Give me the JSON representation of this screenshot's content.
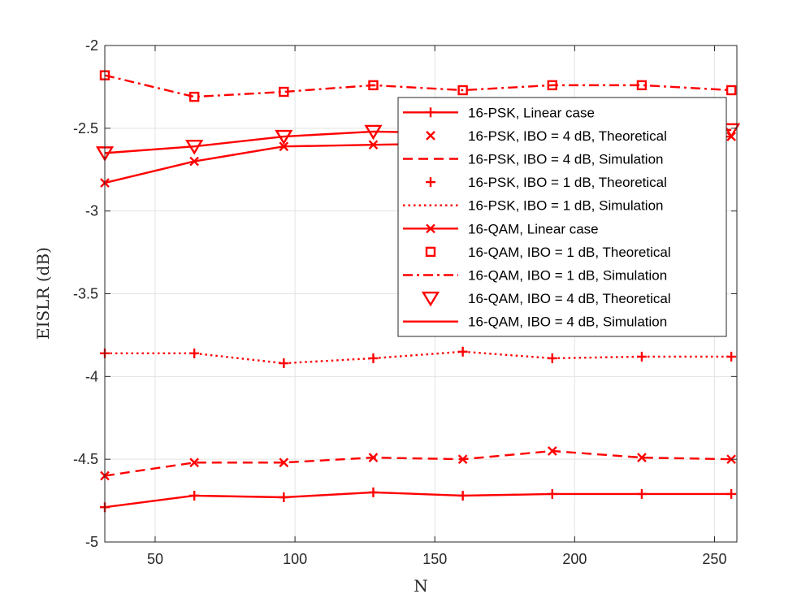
{
  "chart_data": {
    "type": "line",
    "title": "",
    "xlabel": "N",
    "ylabel": "EISLR (dB)",
    "xlim": [
      32,
      258
    ],
    "ylim": [
      -5,
      -2
    ],
    "xticks": [
      50,
      100,
      150,
      200,
      250
    ],
    "xtick_labels": [
      "50",
      "100",
      "150",
      "200",
      "250"
    ],
    "yticks": [
      -2,
      -2.5,
      -3,
      -3.5,
      -4,
      -4.5,
      -5
    ],
    "ytick_labels": [
      "-2",
      "-2.5",
      "-3",
      "-3.5",
      "-4",
      "-4.5",
      "-5"
    ],
    "grid": true,
    "legend_position": "top-right",
    "color": "#ff0000",
    "x": [
      32,
      64,
      96,
      128,
      160,
      192,
      224,
      256
    ],
    "series": [
      {
        "name": "16-PSK, Linear case",
        "line": "solid",
        "marker": "plus",
        "values": [
          -4.79,
          -4.72,
          -4.73,
          -4.7,
          -4.72,
          -4.71,
          -4.71,
          -4.71
        ]
      },
      {
        "name": "16-PSK, IBO = 4 dB, Theoretical",
        "line": "none",
        "marker": "x",
        "values": [
          -4.6,
          -4.52,
          -4.52,
          -4.49,
          -4.5,
          -4.45,
          -4.49,
          -4.5
        ]
      },
      {
        "name": "16-PSK, IBO = 4 dB, Simulation",
        "line": "dashed",
        "marker": "none",
        "values": [
          -4.6,
          -4.52,
          -4.52,
          -4.49,
          -4.5,
          -4.45,
          -4.49,
          -4.5
        ]
      },
      {
        "name": "16-PSK, IBO = 1 dB, Theoretical",
        "line": "none",
        "marker": "plus",
        "values": [
          -3.86,
          -3.86,
          -3.92,
          -3.89,
          -3.85,
          -3.89,
          -3.88,
          -3.88
        ]
      },
      {
        "name": "16-PSK, IBO = 1 dB, Simulation",
        "line": "dotted",
        "marker": "none",
        "values": [
          -3.86,
          -3.86,
          -3.92,
          -3.89,
          -3.85,
          -3.89,
          -3.88,
          -3.88
        ]
      },
      {
        "name": "16-QAM, Linear case",
        "line": "solid",
        "marker": "x",
        "values": [
          -2.83,
          -2.7,
          -2.61,
          -2.6,
          -2.59,
          -2.57,
          -2.56,
          -2.55
        ]
      },
      {
        "name": "16-QAM, IBO = 1 dB, Theoretical",
        "line": "none",
        "marker": "square",
        "values": [
          -2.18,
          -2.31,
          -2.28,
          -2.24,
          -2.27,
          -2.24,
          -2.24,
          -2.27
        ]
      },
      {
        "name": "16-QAM, IBO = 1 dB, Simulation",
        "line": "dashdot",
        "marker": "none",
        "values": [
          -2.18,
          -2.31,
          -2.28,
          -2.24,
          -2.27,
          -2.24,
          -2.24,
          -2.27
        ]
      },
      {
        "name": "16-QAM, IBO = 4 dB, Theoretical",
        "line": "none",
        "marker": "triangle-down",
        "values": [
          -2.65,
          -2.61,
          -2.55,
          -2.52,
          -2.53,
          -2.52,
          -2.51,
          -2.51
        ]
      },
      {
        "name": "16-QAM, IBO = 4 dB, Simulation",
        "line": "solid",
        "marker": "none",
        "values": [
          -2.65,
          -2.61,
          -2.55,
          -2.52,
          -2.53,
          -2.52,
          -2.51,
          -2.51
        ]
      }
    ]
  }
}
